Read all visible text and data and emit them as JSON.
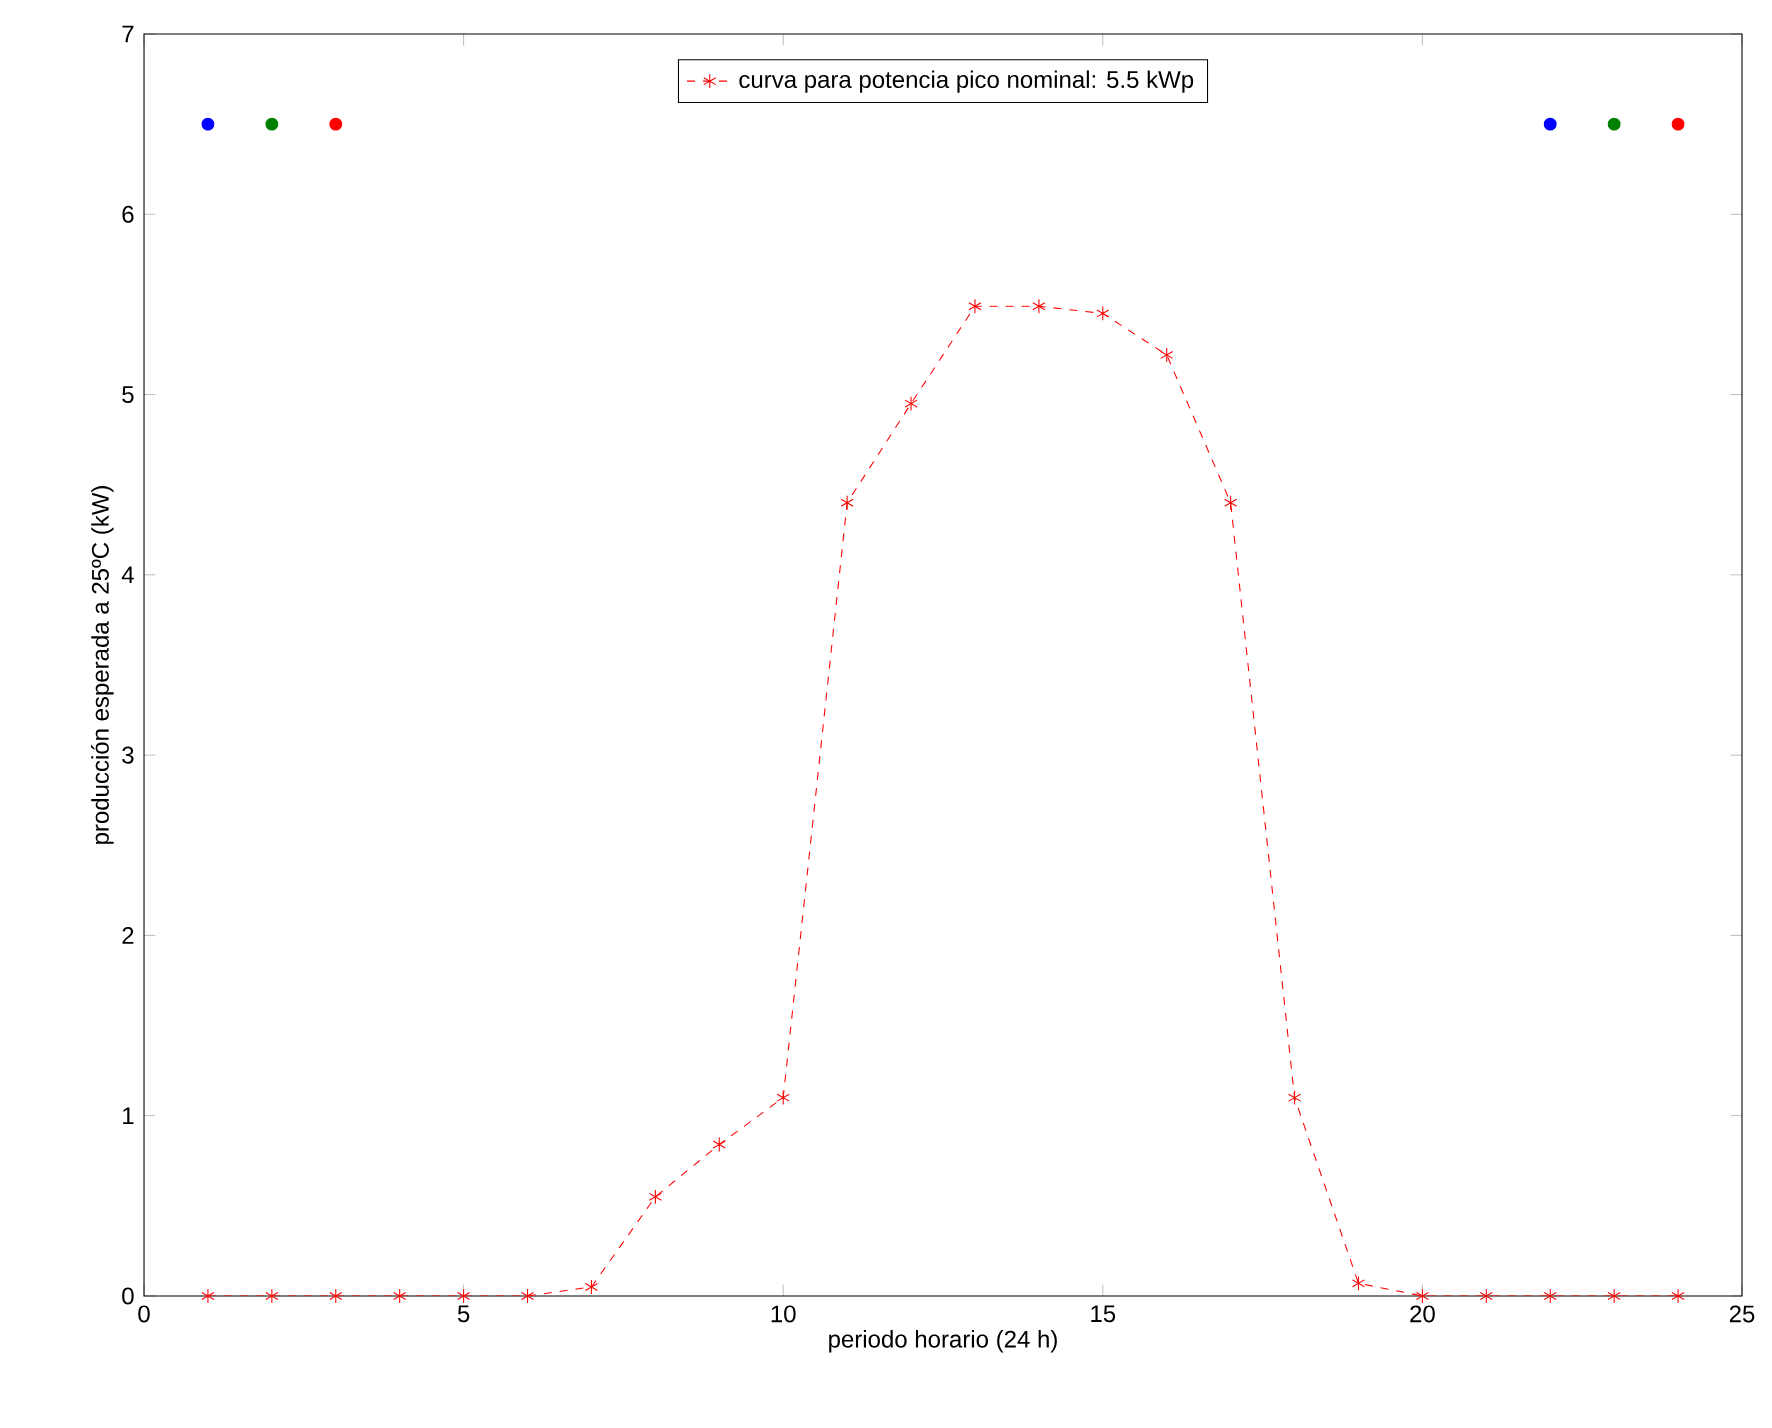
{
  "chart_data": {
    "type": "line",
    "xlabel": "periodo horario (24 h)",
    "ylabel": "producción esperada a 25ºC (kW)",
    "x": [
      1,
      2,
      3,
      4,
      5,
      6,
      7,
      8,
      9,
      10,
      11,
      12,
      13,
      14,
      15,
      16,
      17,
      18,
      19,
      20,
      21,
      22,
      23,
      24
    ],
    "series": [
      {
        "name": "curva para potencia pico nominal:  5.5 kWp",
        "color": "#ff0000",
        "values": [
          0,
          0,
          0,
          0,
          0,
          0,
          0.05,
          0.55,
          0.84,
          1.1,
          4.4,
          4.95,
          5.49,
          5.49,
          5.45,
          5.22,
          4.4,
          1.1,
          0.07,
          0,
          0,
          0,
          0,
          0
        ]
      },
      {
        "type": "scatter",
        "marker": "circle",
        "color": "#0000ff",
        "x": [
          1,
          22
        ],
        "values": [
          6.5,
          6.5
        ]
      },
      {
        "type": "scatter",
        "marker": "circle",
        "color": "#008000",
        "x": [
          2,
          23
        ],
        "values": [
          6.5,
          6.5
        ]
      },
      {
        "type": "scatter",
        "marker": "circle",
        "color": "#ff0000",
        "x": [
          3,
          24
        ],
        "values": [
          6.5,
          6.5
        ]
      }
    ],
    "xlim": [
      0,
      25
    ],
    "ylim": [
      0,
      7
    ],
    "xticks": [
      0,
      5,
      10,
      15,
      20,
      25
    ],
    "yticks": [
      0,
      1,
      2,
      3,
      4,
      5,
      6,
      7
    ],
    "grid": false,
    "legend": "top",
    "marker": "cross",
    "line_style": "dashed"
  }
}
